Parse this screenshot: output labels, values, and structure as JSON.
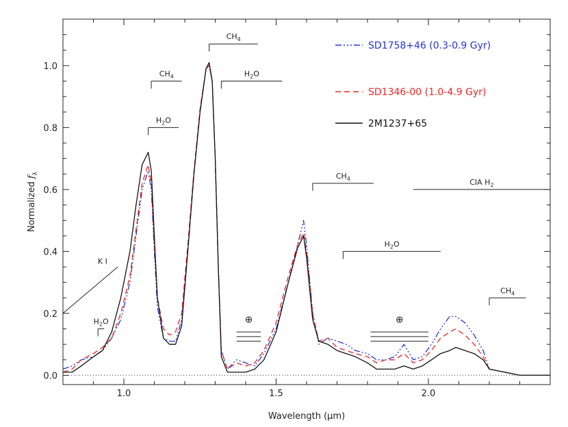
{
  "chart_data": {
    "type": "line",
    "xlabel_prefix": "Wavelength (",
    "xlabel_unit": "μm",
    "xlabel_suffix": ")",
    "ylabel_prefix": "Normalized ",
    "ylabel_f": "f",
    "ylabel_sub": "λ",
    "xlim": [
      0.8,
      2.4
    ],
    "ylim": [
      -0.03,
      1.15
    ],
    "xticks_major": [
      1.0,
      1.5,
      2.0
    ],
    "xtick_labels": [
      "1.0",
      "1.5",
      "2.0"
    ],
    "yticks_major": [
      0.0,
      0.2,
      0.4,
      0.6,
      0.8,
      1.0
    ],
    "ytick_labels": [
      "0.0",
      "0.2",
      "0.4",
      "0.6",
      "0.8",
      "1.0"
    ],
    "zero_line": 0.0,
    "legend_placement": "top-right",
    "series": [
      {
        "name": "SD1758+46 (0.3-0.9 Gyr)",
        "color": "#2233dd",
        "dash": "9,3,2,3,2,3,2,3",
        "points": [
          [
            0.8,
            0.02
          ],
          [
            0.83,
            0.03
          ],
          [
            0.86,
            0.05
          ],
          [
            0.9,
            0.06
          ],
          [
            0.93,
            0.08
          ],
          [
            0.96,
            0.12
          ],
          [
            0.99,
            0.18
          ],
          [
            1.02,
            0.3
          ],
          [
            1.04,
            0.45
          ],
          [
            1.06,
            0.6
          ],
          [
            1.08,
            0.66
          ],
          [
            1.09,
            0.6
          ],
          [
            1.1,
            0.4
          ],
          [
            1.11,
            0.22
          ],
          [
            1.13,
            0.12
          ],
          [
            1.15,
            0.11
          ],
          [
            1.17,
            0.11
          ],
          [
            1.19,
            0.18
          ],
          [
            1.21,
            0.4
          ],
          [
            1.23,
            0.65
          ],
          [
            1.25,
            0.85
          ],
          [
            1.27,
            0.99
          ],
          [
            1.28,
            1.0
          ],
          [
            1.29,
            0.95
          ],
          [
            1.3,
            0.7
          ],
          [
            1.31,
            0.35
          ],
          [
            1.32,
            0.08
          ],
          [
            1.34,
            0.02
          ],
          [
            1.37,
            0.05
          ],
          [
            1.4,
            0.04
          ],
          [
            1.43,
            0.03
          ],
          [
            1.46,
            0.07
          ],
          [
            1.5,
            0.15
          ],
          [
            1.54,
            0.3
          ],
          [
            1.57,
            0.42
          ],
          [
            1.59,
            0.5
          ],
          [
            1.6,
            0.42
          ],
          [
            1.62,
            0.2
          ],
          [
            1.64,
            0.1
          ],
          [
            1.67,
            0.12
          ],
          [
            1.7,
            0.11
          ],
          [
            1.73,
            0.1
          ],
          [
            1.76,
            0.08
          ],
          [
            1.8,
            0.07
          ],
          [
            1.83,
            0.05
          ],
          [
            1.86,
            0.05
          ],
          [
            1.89,
            0.06
          ],
          [
            1.92,
            0.1
          ],
          [
            1.95,
            0.05
          ],
          [
            1.98,
            0.06
          ],
          [
            2.01,
            0.1
          ],
          [
            2.04,
            0.15
          ],
          [
            2.07,
            0.19
          ],
          [
            2.09,
            0.19
          ],
          [
            2.12,
            0.17
          ],
          [
            2.15,
            0.13
          ],
          [
            2.18,
            0.08
          ],
          [
            2.2,
            0.02
          ],
          [
            2.25,
            0.01
          ],
          [
            2.3,
            0.0
          ],
          [
            2.35,
            0.0
          ],
          [
            2.4,
            0.0
          ]
        ]
      },
      {
        "name": "SD1346-00 (1.0-4.9 Gyr)",
        "color": "#ee2222",
        "dash": "8,5",
        "points": [
          [
            0.8,
            0.01
          ],
          [
            0.83,
            0.02
          ],
          [
            0.86,
            0.05
          ],
          [
            0.9,
            0.07
          ],
          [
            0.93,
            0.09
          ],
          [
            0.96,
            0.12
          ],
          [
            0.99,
            0.2
          ],
          [
            1.02,
            0.32
          ],
          [
            1.04,
            0.47
          ],
          [
            1.06,
            0.62
          ],
          [
            1.08,
            0.68
          ],
          [
            1.09,
            0.62
          ],
          [
            1.1,
            0.42
          ],
          [
            1.11,
            0.25
          ],
          [
            1.13,
            0.15
          ],
          [
            1.15,
            0.13
          ],
          [
            1.17,
            0.14
          ],
          [
            1.19,
            0.2
          ],
          [
            1.21,
            0.42
          ],
          [
            1.23,
            0.66
          ],
          [
            1.25,
            0.86
          ],
          [
            1.27,
            0.99
          ],
          [
            1.28,
            1.0
          ],
          [
            1.29,
            0.95
          ],
          [
            1.3,
            0.7
          ],
          [
            1.31,
            0.35
          ],
          [
            1.32,
            0.08
          ],
          [
            1.34,
            0.02
          ],
          [
            1.37,
            0.04
          ],
          [
            1.4,
            0.03
          ],
          [
            1.43,
            0.04
          ],
          [
            1.46,
            0.08
          ],
          [
            1.5,
            0.17
          ],
          [
            1.54,
            0.32
          ],
          [
            1.57,
            0.42
          ],
          [
            1.59,
            0.46
          ],
          [
            1.6,
            0.4
          ],
          [
            1.62,
            0.2
          ],
          [
            1.64,
            0.11
          ],
          [
            1.67,
            0.12
          ],
          [
            1.7,
            0.09
          ],
          [
            1.73,
            0.08
          ],
          [
            1.76,
            0.07
          ],
          [
            1.8,
            0.06
          ],
          [
            1.83,
            0.04
          ],
          [
            1.86,
            0.05
          ],
          [
            1.89,
            0.05
          ],
          [
            1.92,
            0.07
          ],
          [
            1.95,
            0.04
          ],
          [
            1.98,
            0.05
          ],
          [
            2.01,
            0.08
          ],
          [
            2.04,
            0.12
          ],
          [
            2.07,
            0.14
          ],
          [
            2.09,
            0.15
          ],
          [
            2.12,
            0.13
          ],
          [
            2.15,
            0.1
          ],
          [
            2.18,
            0.06
          ],
          [
            2.2,
            0.02
          ],
          [
            2.25,
            0.01
          ],
          [
            2.3,
            0.0
          ],
          [
            2.35,
            0.0
          ],
          [
            2.4,
            0.0
          ]
        ]
      },
      {
        "name": "2M1237+65",
        "color": "#111111",
        "dash": "",
        "points": [
          [
            0.8,
            0.01
          ],
          [
            0.83,
            0.01
          ],
          [
            0.86,
            0.03
          ],
          [
            0.9,
            0.06
          ],
          [
            0.93,
            0.08
          ],
          [
            0.96,
            0.14
          ],
          [
            0.99,
            0.25
          ],
          [
            1.02,
            0.4
          ],
          [
            1.04,
            0.55
          ],
          [
            1.06,
            0.68
          ],
          [
            1.08,
            0.72
          ],
          [
            1.09,
            0.66
          ],
          [
            1.1,
            0.45
          ],
          [
            1.11,
            0.25
          ],
          [
            1.13,
            0.12
          ],
          [
            1.15,
            0.1
          ],
          [
            1.17,
            0.1
          ],
          [
            1.19,
            0.16
          ],
          [
            1.21,
            0.4
          ],
          [
            1.23,
            0.65
          ],
          [
            1.25,
            0.85
          ],
          [
            1.27,
            0.99
          ],
          [
            1.28,
            1.01
          ],
          [
            1.29,
            0.95
          ],
          [
            1.3,
            0.7
          ],
          [
            1.31,
            0.35
          ],
          [
            1.32,
            0.06
          ],
          [
            1.34,
            0.01
          ],
          [
            1.37,
            0.01
          ],
          [
            1.4,
            0.01
          ],
          [
            1.43,
            0.02
          ],
          [
            1.46,
            0.05
          ],
          [
            1.5,
            0.14
          ],
          [
            1.54,
            0.3
          ],
          [
            1.57,
            0.41
          ],
          [
            1.59,
            0.45
          ],
          [
            1.6,
            0.38
          ],
          [
            1.62,
            0.18
          ],
          [
            1.64,
            0.11
          ],
          [
            1.67,
            0.1
          ],
          [
            1.7,
            0.08
          ],
          [
            1.73,
            0.07
          ],
          [
            1.76,
            0.06
          ],
          [
            1.8,
            0.04
          ],
          [
            1.83,
            0.02
          ],
          [
            1.86,
            0.02
          ],
          [
            1.89,
            0.02
          ],
          [
            1.92,
            0.03
          ],
          [
            1.95,
            0.02
          ],
          [
            1.98,
            0.03
          ],
          [
            2.01,
            0.05
          ],
          [
            2.04,
            0.07
          ],
          [
            2.07,
            0.08
          ],
          [
            2.09,
            0.09
          ],
          [
            2.12,
            0.08
          ],
          [
            2.15,
            0.07
          ],
          [
            2.18,
            0.05
          ],
          [
            2.2,
            0.02
          ],
          [
            2.25,
            0.01
          ],
          [
            2.3,
            0.0
          ],
          [
            2.35,
            0.0
          ],
          [
            2.4,
            0.0
          ]
        ]
      }
    ],
    "annotations": {
      "bands": [
        {
          "id": "band-ch4-top",
          "text": "CH",
          "sub": "4",
          "start": 1.28,
          "end": 1.44,
          "y": 1.07,
          "side": "left"
        },
        {
          "id": "band-ch4-upper-left",
          "text": "CH",
          "sub": "4",
          "start": 1.09,
          "end": 1.19,
          "y": 0.95,
          "side": "left"
        },
        {
          "id": "band-h2o-upper",
          "text": "H",
          "sub": "2",
          "suffix": "O",
          "start": 1.32,
          "end": 1.52,
          "y": 0.95,
          "side": "left"
        },
        {
          "id": "band-h2o-left",
          "text": "H",
          "sub": "2",
          "suffix": "O",
          "start": 1.08,
          "end": 1.18,
          "y": 0.8,
          "side": "left"
        },
        {
          "id": "band-ch4-mid",
          "text": "CH",
          "sub": "4",
          "start": 1.62,
          "end": 1.82,
          "y": 0.62,
          "side": "left"
        },
        {
          "id": "band-cia-h2",
          "text": "CIA H",
          "sub": "2",
          "start": 1.95,
          "end": 2.4,
          "y": 0.6,
          "side": "none"
        },
        {
          "id": "band-h2o-mid",
          "text": "H",
          "sub": "2",
          "suffix": "O",
          "start": 1.72,
          "end": 2.04,
          "y": 0.4,
          "side": "left"
        },
        {
          "id": "band-ch4-right",
          "text": "CH",
          "sub": "4",
          "start": 2.2,
          "end": 2.32,
          "y": 0.25,
          "side": "left"
        },
        {
          "id": "band-h2o-small",
          "text": "H",
          "sub": "2",
          "suffix": "O",
          "start": 0.915,
          "end": 0.935,
          "y": 0.15,
          "side": "left"
        }
      ],
      "ki_label": "K I",
      "ki_line": {
        "x1": 0.8,
        "y1": 0.2,
        "x2": 0.98,
        "y2": 0.35
      },
      "telluric_symbol": "⊕",
      "telluric": [
        {
          "id": "telluric-1",
          "start": 1.37,
          "end": 1.45,
          "ys": [
            0.14,
            0.125,
            0.11
          ]
        },
        {
          "id": "telluric-2",
          "start": 1.81,
          "end": 2.0,
          "ys": [
            0.14,
            0.125,
            0.11
          ]
        }
      ]
    }
  }
}
